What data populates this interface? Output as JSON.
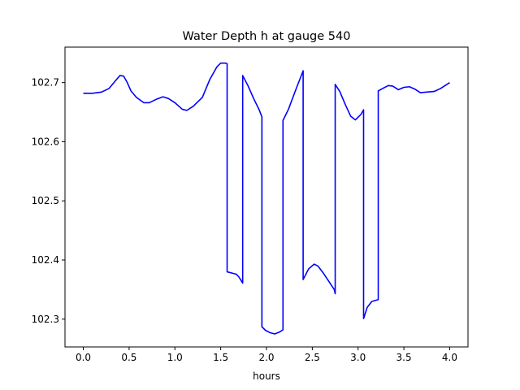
{
  "chart_data": {
    "type": "line",
    "title": "Water Depth h at gauge 540",
    "xlabel": "hours",
    "ylabel": "",
    "xlim": [
      -0.2,
      4.2
    ],
    "ylim": [
      102.253,
      102.76
    ],
    "x_ticks": [
      0.0,
      0.5,
      1.0,
      1.5,
      2.0,
      2.5,
      3.0,
      3.5,
      4.0
    ],
    "x_tick_labels": [
      "0.0",
      "0.5",
      "1.0",
      "1.5",
      "2.0",
      "2.5",
      "3.0",
      "3.5",
      "4.0"
    ],
    "y_ticks": [
      102.3,
      102.4,
      102.5,
      102.6,
      102.7
    ],
    "y_tick_labels": [
      "102.3",
      "102.4",
      "102.5",
      "102.6",
      "102.7"
    ],
    "grid": false,
    "legend": "none",
    "series": [
      {
        "color": "#0000ff",
        "points": [
          [
            0.0,
            102.682
          ],
          [
            0.1,
            102.682
          ],
          [
            0.2,
            102.684
          ],
          [
            0.28,
            102.69
          ],
          [
            0.35,
            102.703
          ],
          [
            0.4,
            102.712
          ],
          [
            0.44,
            102.711
          ],
          [
            0.48,
            102.7
          ],
          [
            0.52,
            102.686
          ],
          [
            0.58,
            102.675
          ],
          [
            0.66,
            102.666
          ],
          [
            0.72,
            102.666
          ],
          [
            0.8,
            102.672
          ],
          [
            0.87,
            102.676
          ],
          [
            0.93,
            102.673
          ],
          [
            1.0,
            102.666
          ],
          [
            1.08,
            102.655
          ],
          [
            1.13,
            102.653
          ],
          [
            1.2,
            102.66
          ],
          [
            1.3,
            102.675
          ],
          [
            1.38,
            102.705
          ],
          [
            1.46,
            102.727
          ],
          [
            1.5,
            102.733
          ],
          [
            1.55,
            102.733
          ],
          [
            1.57,
            102.732
          ],
          [
            1.57,
            102.38
          ],
          [
            1.62,
            102.378
          ],
          [
            1.67,
            102.376
          ],
          [
            1.7,
            102.371
          ],
          [
            1.74,
            102.361
          ],
          [
            1.74,
            102.712
          ],
          [
            1.8,
            102.694
          ],
          [
            1.86,
            102.673
          ],
          [
            1.92,
            102.654
          ],
          [
            1.95,
            102.642
          ],
          [
            1.95,
            102.287
          ],
          [
            1.99,
            102.281
          ],
          [
            2.04,
            102.277
          ],
          [
            2.09,
            102.275
          ],
          [
            2.14,
            102.278
          ],
          [
            2.18,
            102.282
          ],
          [
            2.18,
            102.636
          ],
          [
            2.24,
            102.655
          ],
          [
            2.32,
            102.688
          ],
          [
            2.4,
            102.72
          ],
          [
            2.4,
            102.367
          ],
          [
            2.46,
            102.385
          ],
          [
            2.52,
            102.393
          ],
          [
            2.56,
            102.39
          ],
          [
            2.62,
            102.378
          ],
          [
            2.68,
            102.364
          ],
          [
            2.74,
            102.35
          ],
          [
            2.75,
            102.343
          ],
          [
            2.75,
            102.697
          ],
          [
            2.8,
            102.685
          ],
          [
            2.86,
            102.663
          ],
          [
            2.92,
            102.643
          ],
          [
            2.97,
            102.637
          ],
          [
            3.03,
            102.646
          ],
          [
            3.06,
            102.654
          ],
          [
            3.06,
            102.301
          ],
          [
            3.1,
            102.32
          ],
          [
            3.15,
            102.33
          ],
          [
            3.22,
            102.333
          ],
          [
            3.22,
            102.686
          ],
          [
            3.28,
            102.691
          ],
          [
            3.33,
            102.695
          ],
          [
            3.38,
            102.694
          ],
          [
            3.44,
            102.688
          ],
          [
            3.5,
            102.692
          ],
          [
            3.56,
            102.693
          ],
          [
            3.62,
            102.689
          ],
          [
            3.68,
            102.683
          ],
          [
            3.75,
            102.684
          ],
          [
            3.83,
            102.685
          ],
          [
            3.9,
            102.69
          ],
          [
            4.0,
            102.7
          ]
        ]
      }
    ]
  }
}
